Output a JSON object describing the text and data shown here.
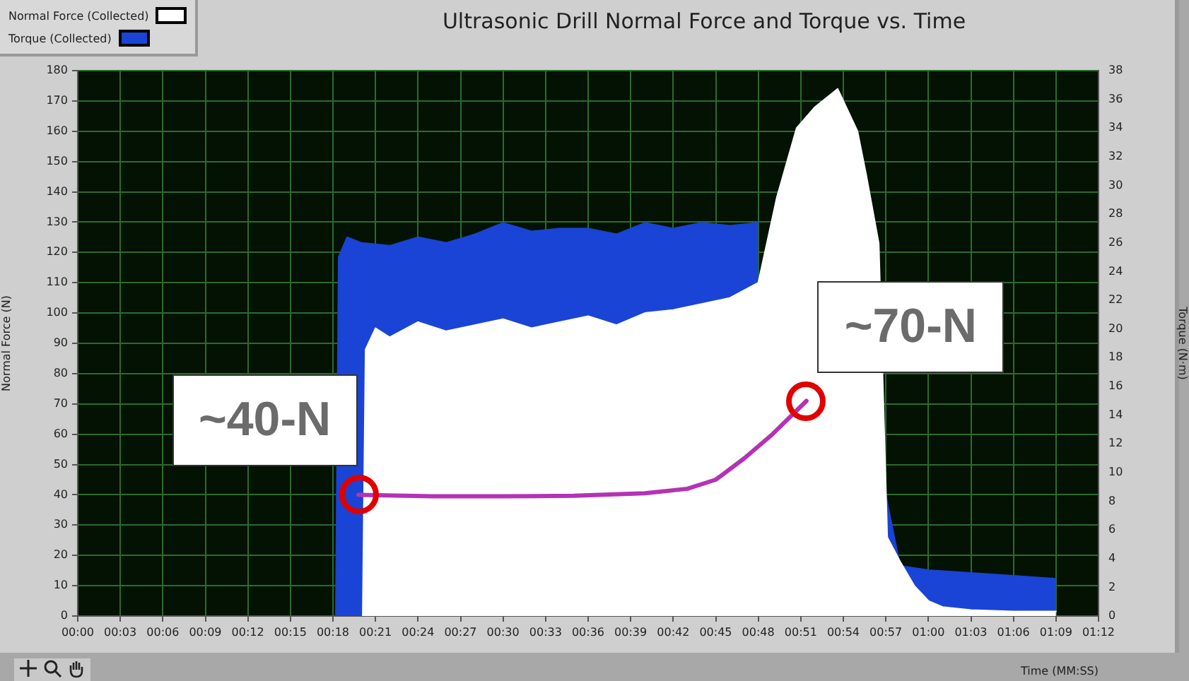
{
  "chart_data": {
    "type": "area",
    "title": "Ultrasonic Drill Normal Force and Torque vs. Time",
    "xlabel": "Time (MM:SS)",
    "ylabel": "Normal Force (N)",
    "y2label": "Torque (N·m)",
    "legend": "top left",
    "grid": true,
    "xlim": [
      0,
      72
    ],
    "xticks": [
      {
        "value": 0,
        "label": "00:00"
      },
      {
        "value": 3,
        "label": "00:03"
      },
      {
        "value": 6,
        "label": "00:06"
      },
      {
        "value": 9,
        "label": "00:09"
      },
      {
        "value": 12,
        "label": "00:12"
      },
      {
        "value": 15,
        "label": "00:15"
      },
      {
        "value": 18,
        "label": "00:18"
      },
      {
        "value": 21,
        "label": "00:21"
      },
      {
        "value": 24,
        "label": "00:24"
      },
      {
        "value": 27,
        "label": "00:27"
      },
      {
        "value": 30,
        "label": "00:30"
      },
      {
        "value": 33,
        "label": "00:33"
      },
      {
        "value": 36,
        "label": "00:36"
      },
      {
        "value": 39,
        "label": "00:39"
      },
      {
        "value": 42,
        "label": "00:42"
      },
      {
        "value": 45,
        "label": "00:45"
      },
      {
        "value": 48,
        "label": "00:48"
      },
      {
        "value": 51,
        "label": "00:51"
      },
      {
        "value": 54,
        "label": "00:54"
      },
      {
        "value": 57,
        "label": "00:57"
      },
      {
        "value": 60,
        "label": "01:00"
      },
      {
        "value": 63,
        "label": "01:03"
      },
      {
        "value": 66,
        "label": "01:06"
      },
      {
        "value": 69,
        "label": "01:09"
      },
      {
        "value": 72,
        "label": "01:12"
      }
    ],
    "ylim": [
      0,
      180
    ],
    "yticks": [
      0,
      10,
      20,
      30,
      40,
      50,
      60,
      70,
      80,
      90,
      100,
      110,
      120,
      130,
      140,
      150,
      160,
      170,
      180
    ],
    "y2lim": [
      0,
      38
    ],
    "y2ticks": [
      0,
      2,
      4,
      6,
      8,
      10,
      12,
      14,
      16,
      18,
      20,
      22,
      24,
      26,
      28,
      30,
      32,
      34,
      36,
      38
    ],
    "series": [
      {
        "name": "Normal Force (Collected)",
        "color": "#ffffff",
        "x": [
          20.1,
          20.3,
          21,
          22,
          24,
          26,
          28,
          30,
          32,
          34,
          36,
          38,
          40,
          42,
          44,
          46,
          48,
          49.3,
          50.7,
          52,
          53.6,
          55,
          55.6,
          56.5,
          57.1,
          58,
          59,
          60,
          61,
          63,
          66,
          69
        ],
        "values": [
          0,
          88,
          95,
          92,
          97,
          94,
          96,
          98,
          95,
          97,
          99,
          96,
          100,
          101,
          103,
          105,
          110,
          138,
          161,
          168,
          174,
          160,
          146,
          123,
          26,
          18,
          10,
          5,
          3,
          2,
          1.5,
          1.5
        ]
      },
      {
        "name": "Torque (Collected)",
        "color": "#1a44d6",
        "axis": "y2",
        "x": [
          18.2,
          18.4,
          19,
          20,
          22,
          24,
          26,
          28,
          30,
          32,
          34,
          36,
          38,
          40,
          42,
          44,
          46,
          48,
          49.5,
          50,
          56.5,
          57,
          58,
          60,
          63,
          66,
          69
        ],
        "values": [
          0,
          25,
          26.4,
          26,
          25.8,
          26.4,
          26,
          26.6,
          27.4,
          26.8,
          27,
          27,
          26.6,
          27.4,
          27,
          27.4,
          27.2,
          27.4,
          null,
          null,
          null,
          8.4,
          3.5,
          3.2,
          3,
          2.8,
          2.6
        ]
      },
      {
        "type": "line",
        "color": "#b532b5",
        "x": [
          19.8,
          25,
          30,
          35,
          40,
          43,
          45,
          47,
          49,
          51.4
        ],
        "values": [
          40,
          39.5,
          39.5,
          39.7,
          40.5,
          42,
          45,
          52,
          60,
          71
        ]
      }
    ],
    "annotations": [
      {
        "text": "~40-N",
        "x": 19.8,
        "y": 40
      },
      {
        "text": "~70-N",
        "x": 51.4,
        "y": 71
      }
    ]
  }
}
